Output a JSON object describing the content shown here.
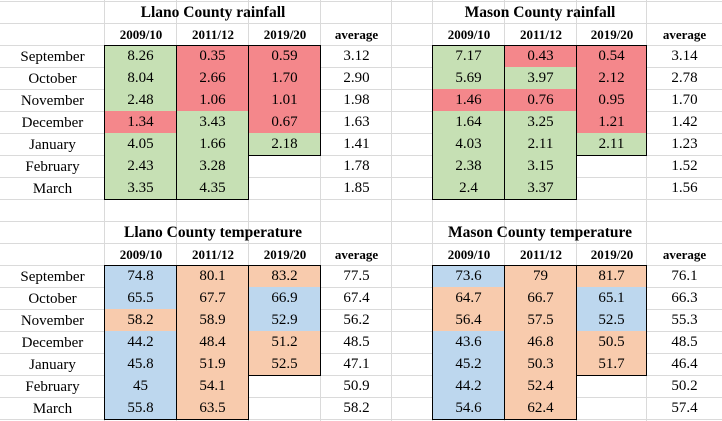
{
  "sections": [
    {
      "months": [
        "September",
        "October",
        "November",
        "December",
        "January",
        "February",
        "March"
      ],
      "tables": [
        {
          "title": "Llano County rainfall",
          "headers": [
            "2009/10",
            "2011/12",
            "2019/20",
            "average"
          ],
          "rows": [
            {
              "values": [
                "8.26",
                "0.35",
                "0.59"
              ],
              "colors": [
                "#c6e0b4",
                "#f4878b",
                "#f4878b"
              ],
              "average": "3.12"
            },
            {
              "values": [
                "8.04",
                "2.66",
                "1.70"
              ],
              "colors": [
                "#c6e0b4",
                "#f4878b",
                "#f4878b"
              ],
              "average": "2.90"
            },
            {
              "values": [
                "2.48",
                "1.06",
                "1.01"
              ],
              "colors": [
                "#c6e0b4",
                "#f4878b",
                "#f4878b"
              ],
              "average": "1.98"
            },
            {
              "values": [
                "1.34",
                "3.43",
                "0.67"
              ],
              "colors": [
                "#f4878b",
                "#c6e0b4",
                "#f4878b"
              ],
              "average": "1.63"
            },
            {
              "values": [
                "4.05",
                "1.66",
                "2.18"
              ],
              "colors": [
                "#c6e0b4",
                "#c6e0b4",
                "#c6e0b4"
              ],
              "average": "1.41"
            },
            {
              "values": [
                "2.43",
                "3.28"
              ],
              "colors": [
                "#c6e0b4",
                "#c6e0b4"
              ],
              "average": "1.78"
            },
            {
              "values": [
                "3.35",
                "4.35"
              ],
              "colors": [
                "#c6e0b4",
                "#c6e0b4"
              ],
              "average": "1.85"
            }
          ]
        },
        {
          "title": "Mason County rainfall",
          "headers": [
            "2009/10",
            "2011/12",
            "2019/20",
            "average"
          ],
          "rows": [
            {
              "values": [
                "7.17",
                "0.43",
                "0.54"
              ],
              "colors": [
                "#c6e0b4",
                "#f4878b",
                "#f4878b"
              ],
              "average": "3.14"
            },
            {
              "values": [
                "5.69",
                "3.97",
                "2.12"
              ],
              "colors": [
                "#c6e0b4",
                "#c6e0b4",
                "#f4878b"
              ],
              "average": "2.78"
            },
            {
              "values": [
                "1.46",
                "0.76",
                "0.95"
              ],
              "colors": [
                "#f4878b",
                "#f4878b",
                "#f4878b"
              ],
              "average": "1.70"
            },
            {
              "values": [
                "1.64",
                "3.25",
                "1.21"
              ],
              "colors": [
                "#c6e0b4",
                "#c6e0b4",
                "#f4878b"
              ],
              "average": "1.42"
            },
            {
              "values": [
                "4.03",
                "2.11",
                "2.11"
              ],
              "colors": [
                "#c6e0b4",
                "#c6e0b4",
                "#c6e0b4"
              ],
              "average": "1.23"
            },
            {
              "values": [
                "2.38",
                "3.15"
              ],
              "colors": [
                "#c6e0b4",
                "#c6e0b4"
              ],
              "average": "1.52"
            },
            {
              "values": [
                "2.4",
                "3.37"
              ],
              "colors": [
                "#c6e0b4",
                "#c6e0b4"
              ],
              "average": "1.56"
            }
          ]
        }
      ]
    },
    {
      "months": [
        "September",
        "October",
        "November",
        "December",
        "January",
        "February",
        "March"
      ],
      "tables": [
        {
          "title": "Llano County temperature",
          "headers": [
            "2009/10",
            "2011/12",
            "2019/20",
            "average"
          ],
          "rows": [
            {
              "values": [
                "74.8",
                "80.1",
                "83.2"
              ],
              "colors": [
                "#bdd7ee",
                "#f8cbad",
                "#f8cbad"
              ],
              "average": "77.5"
            },
            {
              "values": [
                "65.5",
                "67.7",
                "66.9"
              ],
              "colors": [
                "#bdd7ee",
                "#f8cbad",
                "#bdd7ee"
              ],
              "average": "67.4"
            },
            {
              "values": [
                "58.2",
                "58.9",
                "52.9"
              ],
              "colors": [
                "#f8cbad",
                "#f8cbad",
                "#bdd7ee"
              ],
              "average": "56.2"
            },
            {
              "values": [
                "44.2",
                "48.4",
                "51.2"
              ],
              "colors": [
                "#bdd7ee",
                "#f8cbad",
                "#f8cbad"
              ],
              "average": "48.5"
            },
            {
              "values": [
                "45.8",
                "51.9",
                "52.5"
              ],
              "colors": [
                "#bdd7ee",
                "#f8cbad",
                "#f8cbad"
              ],
              "average": "47.1"
            },
            {
              "values": [
                "45",
                "54.1"
              ],
              "colors": [
                "#bdd7ee",
                "#f8cbad"
              ],
              "average": "50.9"
            },
            {
              "values": [
                "55.8",
                "63.5"
              ],
              "colors": [
                "#bdd7ee",
                "#f8cbad"
              ],
              "average": "58.2"
            }
          ]
        },
        {
          "title": "Mason County temperature",
          "headers": [
            "2009/10",
            "2011/12",
            "2019/20",
            "average"
          ],
          "rows": [
            {
              "values": [
                "73.6",
                "79",
                "81.7"
              ],
              "colors": [
                "#bdd7ee",
                "#f8cbad",
                "#f8cbad"
              ],
              "average": "76.1"
            },
            {
              "values": [
                "64.7",
                "66.7",
                "65.1"
              ],
              "colors": [
                "#f8cbad",
                "#f8cbad",
                "#bdd7ee"
              ],
              "average": "66.3"
            },
            {
              "values": [
                "56.4",
                "57.5",
                "52.5"
              ],
              "colors": [
                "#f8cbad",
                "#f8cbad",
                "#bdd7ee"
              ],
              "average": "55.3"
            },
            {
              "values": [
                "43.6",
                "46.8",
                "50.5"
              ],
              "colors": [
                "#bdd7ee",
                "#f8cbad",
                "#f8cbad"
              ],
              "average": "48.5"
            },
            {
              "values": [
                "45.2",
                "50.3",
                "51.7"
              ],
              "colors": [
                "#bdd7ee",
                "#f8cbad",
                "#f8cbad"
              ],
              "average": "46.4"
            },
            {
              "values": [
                "44.2",
                "52.4"
              ],
              "colors": [
                "#bdd7ee",
                "#f8cbad"
              ],
              "average": "50.2"
            },
            {
              "values": [
                "54.6",
                "62.4"
              ],
              "colors": [
                "#bdd7ee",
                "#f8cbad"
              ],
              "average": "57.4"
            }
          ]
        }
      ]
    }
  ]
}
